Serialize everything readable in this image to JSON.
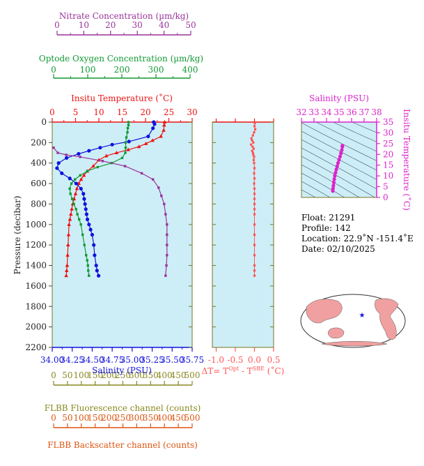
{
  "colors": {
    "panel_bg": "#cdeef7",
    "temperature": "#ee1111",
    "salinity": "#1111dd",
    "oxygen": "#119933",
    "nitrate": "#993399",
    "dt": "#ff5555",
    "fluorescence": "#888822",
    "backscatter": "#dd5511",
    "ts": "#dd22cc",
    "frame": "#777722"
  },
  "axes": {
    "nitrate": {
      "label": "Nitrate Concentration (µm/kg)",
      "ticks": [
        "0",
        "10",
        "20",
        "30",
        "40",
        "50"
      ]
    },
    "oxygen": {
      "label": "Optode Oxygen Concentration (µm/kg)",
      "ticks": [
        "0",
        "100",
        "200",
        "300",
        "400"
      ]
    },
    "temperature": {
      "label": "Insitu Temperature (˚C)",
      "ticks": [
        "0",
        "5",
        "10",
        "15",
        "20",
        "25",
        "30"
      ]
    },
    "pressure": {
      "label": "Pressure (decibar)",
      "ticks": [
        "0",
        "200",
        "400",
        "600",
        "800",
        "1000",
        "1200",
        "1400",
        "1600",
        "1800",
        "2000",
        "2200"
      ]
    },
    "salinity": {
      "label": "Salinity (PSU)",
      "ticks": [
        "34.00",
        "34.25",
        "34.50",
        "34.75",
        "35.00",
        "35.25",
        "35.50",
        "35.75"
      ]
    },
    "dt": {
      "label_main": "ΔT= T",
      "label_sup1": "Opt",
      "label_mid": " - T",
      "label_sup2": "SBE",
      "label_end": " (˚C)",
      "ticks": [
        "-1.0",
        "-0.5",
        "0.0",
        "0.5"
      ]
    },
    "fluorescence": {
      "label": "FLBB Fluorescence channel (counts)",
      "ticks": [
        "0",
        "50",
        "100",
        "150",
        "200",
        "250",
        "300",
        "350",
        "400",
        "450",
        "500"
      ]
    },
    "backscatter": {
      "label": "FLBB Backscatter channel (counts)",
      "ticks": [
        "0",
        "50",
        "100",
        "150",
        "200",
        "250",
        "300",
        "350",
        "400",
        "450",
        "500"
      ]
    },
    "ts_salinity": {
      "label": "Salinity (PSU)",
      "ticks": [
        "32",
        "33",
        "34",
        "35",
        "36",
        "37",
        "38"
      ]
    },
    "ts_temperature": {
      "label": "Insitu Temperature (˚C)",
      "ticks": [
        "0",
        "5",
        "10",
        "15",
        "20",
        "25",
        "30",
        "35"
      ]
    }
  },
  "info": {
    "float": "Float:  21291",
    "profile": "Profile:  142",
    "location": "Location:  22.9˚N  -151.4˚E",
    "date": "Date:  02/10/2025"
  },
  "map": {
    "marker": "★"
  },
  "chart_data": [
    {
      "type": "line",
      "title": "",
      "ylabel": "Pressure (decibar)",
      "ylim": [
        2200,
        0
      ],
      "grid": false,
      "series": [
        {
          "name": "Insitu Temperature",
          "xlabel": "Insitu Temperature (˚C)",
          "xlim": [
            0,
            30
          ],
          "x": [
            24.1,
            24.0,
            23.9,
            23.3,
            21.5,
            20.1,
            18.6,
            16.3,
            13.8,
            11.6,
            10.0,
            8.8,
            7.5,
            6.8,
            6.2,
            5.7,
            5.3,
            5.0,
            4.7,
            4.4,
            4.2,
            4.0,
            3.8,
            3.6,
            3.5,
            3.4,
            3.3,
            3.2,
            3.1,
            3.0
          ],
          "y": [
            0,
            30,
            80,
            140,
            180,
            210,
            240,
            270,
            300,
            330,
            370,
            430,
            480,
            520,
            560,
            600,
            650,
            700,
            750,
            800,
            850,
            900,
            950,
            1000,
            1100,
            1200,
            1300,
            1400,
            1450,
            1500
          ]
        },
        {
          "name": "Salinity",
          "xlabel": "Salinity (PSU)",
          "xlim": [
            34.0,
            35.75
          ],
          "x": [
            35.27,
            35.28,
            35.26,
            35.2,
            34.96,
            34.75,
            34.6,
            34.46,
            34.33,
            34.18,
            34.08,
            34.06,
            34.12,
            34.22,
            34.3,
            34.36,
            34.39,
            34.4,
            34.41,
            34.42,
            34.43,
            34.44,
            34.46,
            34.48,
            34.5,
            34.52,
            34.53,
            34.55,
            34.56,
            34.58
          ],
          "y": [
            0,
            20,
            60,
            140,
            190,
            220,
            250,
            280,
            310,
            350,
            400,
            450,
            500,
            550,
            600,
            650,
            700,
            750,
            800,
            850,
            900,
            950,
            1000,
            1050,
            1100,
            1200,
            1300,
            1400,
            1450,
            1500
          ]
        },
        {
          "name": "Optode Oxygen Concentration",
          "xlabel": "Optode Oxygen Concentration (µm/kg)",
          "xlim": [
            0,
            400
          ],
          "x": [
            218,
            218,
            216,
            215,
            212,
            210,
            210,
            209,
            200,
            170,
            130,
            100,
            80,
            65,
            55,
            50,
            52,
            57,
            62,
            68,
            72,
            77,
            82,
            87,
            92,
            97,
            100,
            102,
            103,
            105
          ],
          "y": [
            0,
            30,
            60,
            100,
            150,
            200,
            250,
            300,
            350,
            400,
            440,
            480,
            520,
            560,
            600,
            650,
            700,
            750,
            800,
            850,
            900,
            950,
            1000,
            1100,
            1200,
            1300,
            1350,
            1400,
            1450,
            1500
          ]
        },
        {
          "name": "Nitrate Concentration",
          "xlabel": "Nitrate Concentration (µm/kg)",
          "xlim": [
            0,
            50
          ],
          "x": [
            0.5,
            2.0,
            5.0,
            10.0,
            18.0,
            26.0,
            32.0,
            36.0,
            38.0,
            39.0,
            40.0,
            40.5,
            41.0,
            41.0,
            41.0,
            41.0,
            40.8,
            40.5
          ],
          "y": [
            250,
            300,
            320,
            340,
            380,
            430,
            500,
            560,
            640,
            720,
            800,
            900,
            1000,
            1100,
            1200,
            1300,
            1400,
            1500
          ]
        }
      ]
    },
    {
      "type": "scatter",
      "name": "ΔT= TOpt - TSBE",
      "xlabel": "ΔT= TOpt - TSBE (˚C)",
      "xlim": [
        -1.1,
        0.5
      ],
      "ylim": [
        2200,
        0
      ],
      "x": [
        0.01,
        0.0,
        0.02,
        -0.01,
        -0.04,
        -0.08,
        -0.06,
        -0.03,
        -0.09,
        -0.05,
        -0.02,
        -0.06,
        -0.04,
        -0.03,
        -0.01,
        -0.02,
        -0.01,
        0.0,
        -0.01,
        0.0,
        -0.01,
        0.0,
        0.0,
        0.0,
        0.0,
        0.0,
        0.0,
        0.0,
        0.0,
        0.0,
        0.0,
        0.0,
        0.0,
        0.0
      ],
      "y": [
        10,
        40,
        70,
        100,
        130,
        160,
        180,
        200,
        220,
        240,
        260,
        280,
        300,
        320,
        340,
        370,
        400,
        450,
        500,
        550,
        600,
        650,
        700,
        750,
        800,
        850,
        900,
        1000,
        1100,
        1200,
        1300,
        1400,
        1450,
        1500
      ]
    },
    {
      "type": "line",
      "name": "T-S diagram",
      "xlabel": "Salinity (PSU)",
      "ylabel": "Insitu Temperature (˚C)",
      "xlim": [
        32,
        38
      ],
      "ylim": [
        0,
        35
      ],
      "x": [
        35.27,
        35.26,
        35.22,
        35.15,
        35.08,
        35.0,
        34.92,
        34.85,
        34.78,
        34.72,
        34.66,
        34.62,
        34.58,
        34.55,
        34.52,
        34.5
      ],
      "y": [
        24.1,
        23.5,
        22.0,
        20.5,
        19.0,
        17.5,
        16.0,
        14.5,
        13.0,
        11.5,
        10.0,
        8.5,
        7.0,
        5.5,
        4.2,
        3.0
      ]
    }
  ]
}
